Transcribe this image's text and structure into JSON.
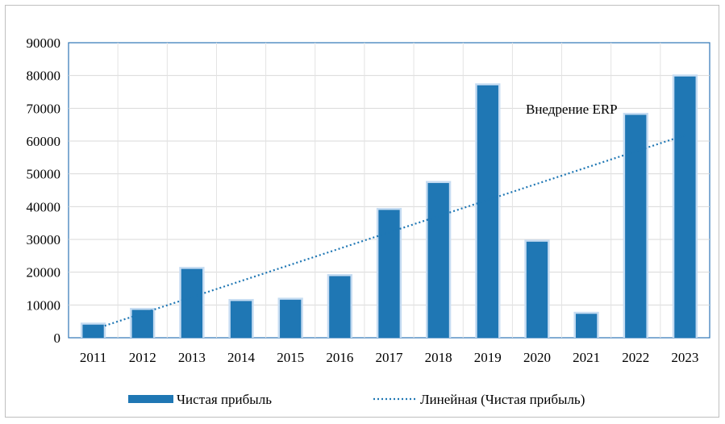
{
  "chart_data": {
    "type": "bar",
    "title": "",
    "xlabel": "",
    "ylabel": "",
    "ylim": [
      0,
      90000
    ],
    "y_ticks": [
      0,
      10000,
      20000,
      30000,
      40000,
      50000,
      60000,
      70000,
      80000,
      90000
    ],
    "categories": [
      "2011",
      "2012",
      "2013",
      "2014",
      "2015",
      "2016",
      "2017",
      "2018",
      "2019",
      "2020",
      "2021",
      "2022",
      "2023"
    ],
    "series": [
      {
        "name": "Чистая прибыль",
        "color": "#1f77b4",
        "values": [
          4000,
          8500,
          21000,
          11200,
          11600,
          18800,
          39000,
          47200,
          77000,
          29300,
          7300,
          68000,
          79700
        ]
      }
    ],
    "trendline": {
      "name": "Линейная (Чистая прибыль)",
      "type": "linear",
      "color": "#1f77b4",
      "start": 2500,
      "end": 61800
    },
    "annotation": "Внедрение ERP",
    "grid": true,
    "legend_position": "bottom"
  }
}
